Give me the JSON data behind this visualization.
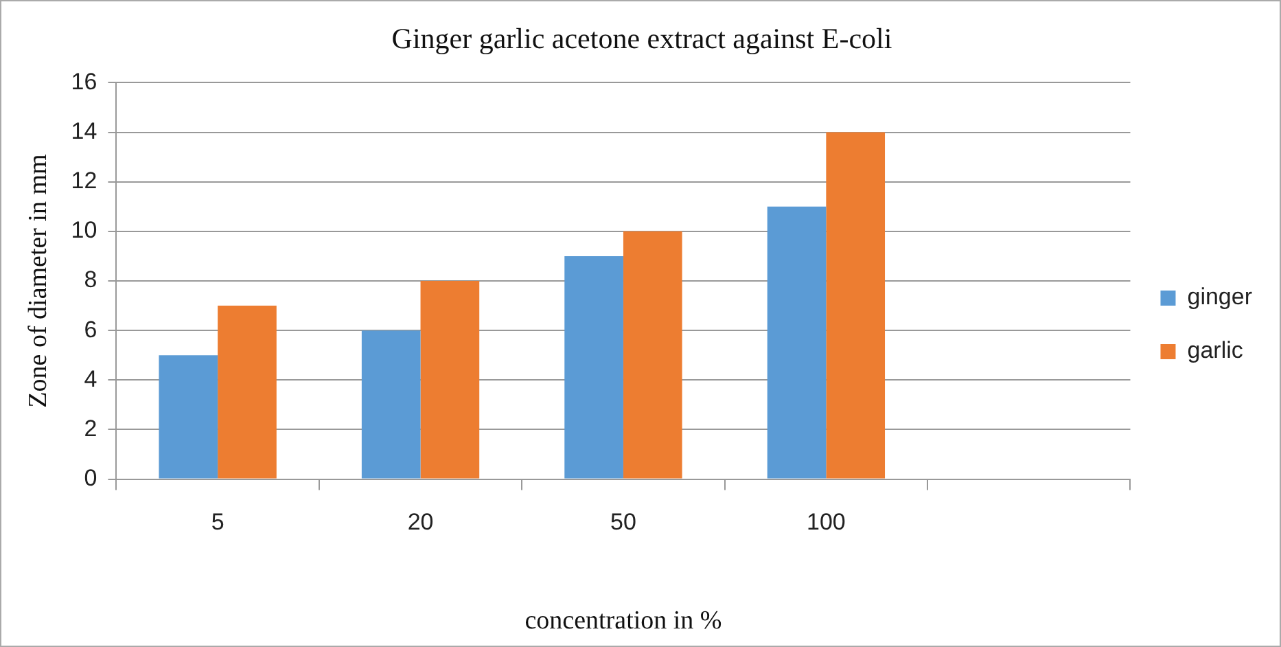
{
  "chart_data": {
    "type": "bar",
    "title": "Ginger garlic acetone extract against E-coli",
    "xlabel": "concentration in %",
    "ylabel": "Zone of diameter in mm",
    "categories": [
      "5",
      "20",
      "50",
      "100",
      null
    ],
    "series": [
      {
        "name": "ginger",
        "color": "#5b9bd5",
        "values": [
          5,
          6,
          9,
          11,
          null
        ]
      },
      {
        "name": "garlic",
        "color": "#ed7d31",
        "values": [
          7,
          8,
          10,
          14,
          null
        ]
      }
    ],
    "ylim": [
      0,
      16
    ],
    "yticks": [
      0,
      2,
      4,
      6,
      8,
      10,
      12,
      14,
      16
    ],
    "grid": "y",
    "legend": "right"
  }
}
